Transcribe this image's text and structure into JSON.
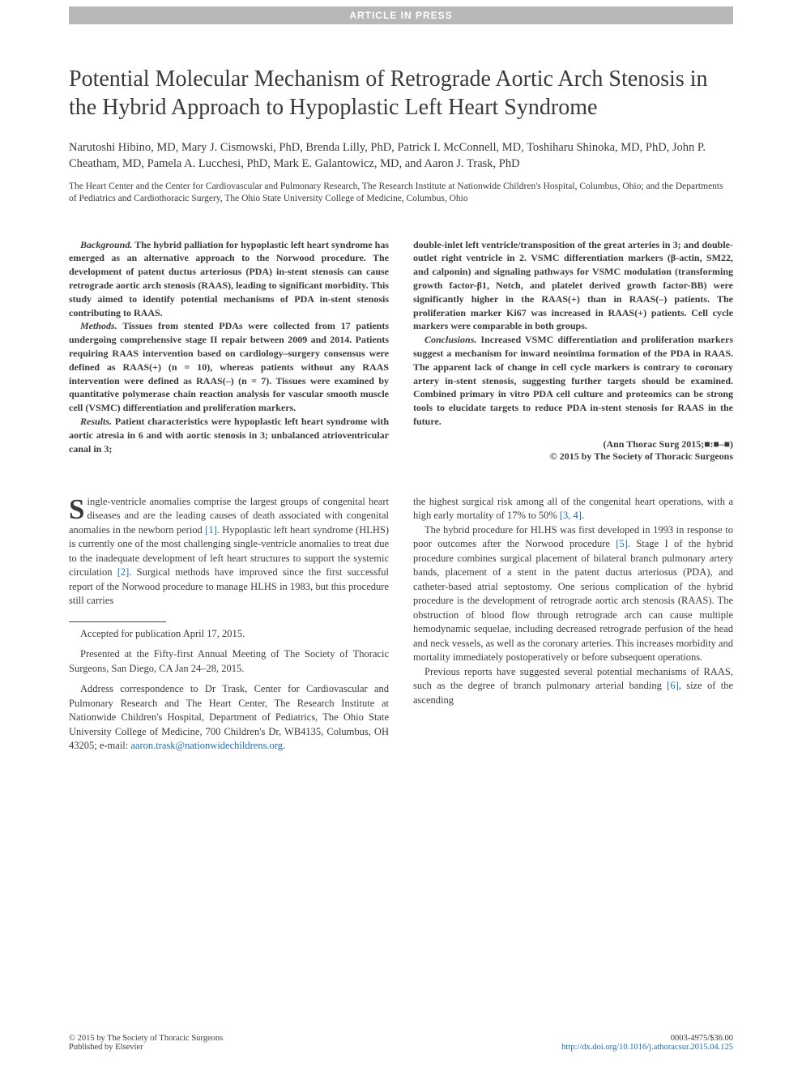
{
  "header_bar": "ARTICLE IN PRESS",
  "title": "Potential Molecular Mechanism of Retrograde Aortic Arch Stenosis in the Hybrid Approach to Hypoplastic Left Heart Syndrome",
  "authors": "Narutoshi Hibino, MD, Mary J. Cismowski, PhD, Brenda Lilly, PhD, Patrick I. McConnell, MD, Toshiharu Shinoka, MD, PhD, John P. Cheatham, MD, Pamela A. Lucchesi, PhD, Mark E. Galantowicz, MD, and Aaron J. Trask, PhD",
  "affiliation": "The Heart Center and the Center for Cardiovascular and Pulmonary Research, The Research Institute at Nationwide Children's Hospital, Columbus, Ohio; and the Departments of Pediatrics and Cardiothoracic Surgery, The Ohio State University College of Medicine, Columbus, Ohio",
  "abstract": {
    "background_label": "Background.",
    "background": " The hybrid palliation for hypoplastic left heart syndrome has emerged as an alternative approach to the Norwood procedure. The development of patent ductus arteriosus (PDA) in-stent stenosis can cause retrograde aortic arch stenosis (RAAS), leading to significant morbidity. This study aimed to identify potential mechanisms of PDA in-stent stenosis contributing to RAAS.",
    "methods_label": "Methods.",
    "methods": " Tissues from stented PDAs were collected from 17 patients undergoing comprehensive stage II repair between 2009 and 2014. Patients requiring RAAS intervention based on cardiology–surgery consensus were defined as RAAS(+) (n = 10), whereas patients without any RAAS intervention were defined as RAAS(–) (n = 7). Tissues were examined by quantitative polymerase chain reaction analysis for vascular smooth muscle cell (VSMC) differentiation and proliferation markers.",
    "results_label": "Results.",
    "results": " Patient characteristics were hypoplastic left heart syndrome with aortic atresia in 6 and with aortic stenosis in 3; unbalanced atrioventricular canal in 3;",
    "results_cont": "double-inlet left ventricle/transposition of the great arteries in 3; and double-outlet right ventricle in 2. VSMC differentiation markers (β-actin, SM22, and calponin) and signaling pathways for VSMC modulation (transforming growth factor-β1, Notch, and platelet derived growth factor-BB) were significantly higher in the RAAS(+) than in RAAS(–) patients. The proliferation marker Ki67 was increased in RAAS(+) patients. Cell cycle markers were comparable in both groups.",
    "conclusions_label": "Conclusions.",
    "conclusions": " Increased VSMC differentiation and proliferation markers suggest a mechanism for inward neointima formation of the PDA in RAAS. The apparent lack of change in cell cycle markers is contrary to coronary artery in-stent stenosis, suggesting further targets should be examined. Combined primary in vitro PDA cell culture and proteomics can be strong tools to elucidate targets to reduce PDA in-stent stenosis for RAAS in the future."
  },
  "citation": "(Ann Thorac Surg 2015;■:■–■)",
  "copyright_abs": "© 2015 by The Society of Thoracic Surgeons",
  "body": {
    "p1_dropcap": "S",
    "p1": "ingle-ventricle anomalies comprise the largest groups of congenital heart diseases and are the leading causes of death associated with congenital anomalies in the newborn period ",
    "ref1": "[1]",
    "p1b": ". Hypoplastic left heart syndrome (HLHS) is currently one of the most challenging single-ventricle anomalies to treat due to the inadequate development of left heart structures to support the systemic circulation ",
    "ref2": "[2]",
    "p1c": ". Surgical methods have improved since the first successful report of the Norwood procedure to manage HLHS in 1983, but this procedure still carries",
    "p2a": "the highest surgical risk among all of the congenital heart operations, with a high early mortality of 17% to 50% ",
    "ref34": "[3, 4]",
    "p2b": ".",
    "p3a": "The hybrid procedure for HLHS was first developed in 1993 in response to poor outcomes after the Norwood procedure ",
    "ref5": "[5]",
    "p3b": ". Stage I of the hybrid procedure combines surgical placement of bilateral branch pulmonary artery bands, placement of a stent in the patent ductus arteriosus (PDA), and catheter-based atrial septostomy. One serious complication of the hybrid procedure is the development of retrograde aortic arch stenosis (RAAS). The obstruction of blood flow through retrograde arch can cause multiple hemodynamic sequelae, including decreased retrograde perfusion of the head and neck vessels, as well as the coronary arteries. This increases morbidity and mortality immediately postoperatively or before subsequent operations.",
    "p4a": "Previous reports have suggested several potential mechanisms of RAAS, such as the degree of branch pulmonary arterial banding ",
    "ref6": "[6]",
    "p4b": ", size of the ascending"
  },
  "footnotes": {
    "accepted": "Accepted for publication April 17, 2015.",
    "presented": "Presented at the Fifty-first Annual Meeting of The Society of Thoracic Surgeons, San Diego, CA Jan 24–28, 2015.",
    "address": "Address correspondence to Dr Trask, Center for Cardiovascular and Pulmonary Research and The Heart Center, The Research Institute at Nationwide Children's Hospital, Department of Pediatrics, The Ohio State University College of Medicine, 700 Children's Dr, WB4135, Columbus, OH 43205; e-mail: ",
    "email": "aaron.trask@nationwidechildrens.org",
    "period": "."
  },
  "bottom": {
    "copyright": "© 2015 by The Society of Thoracic Surgeons",
    "publisher": "Published by Elsevier",
    "issn": "0003-4975/$36.00",
    "doi": "http://dx.doi.org/10.1016/j.athoracsur.2015.04.125"
  },
  "colors": {
    "header_bg": "#b8b8b8",
    "text": "#3a3a3a",
    "link": "#1a6db8",
    "page_bg": "#ffffff"
  }
}
